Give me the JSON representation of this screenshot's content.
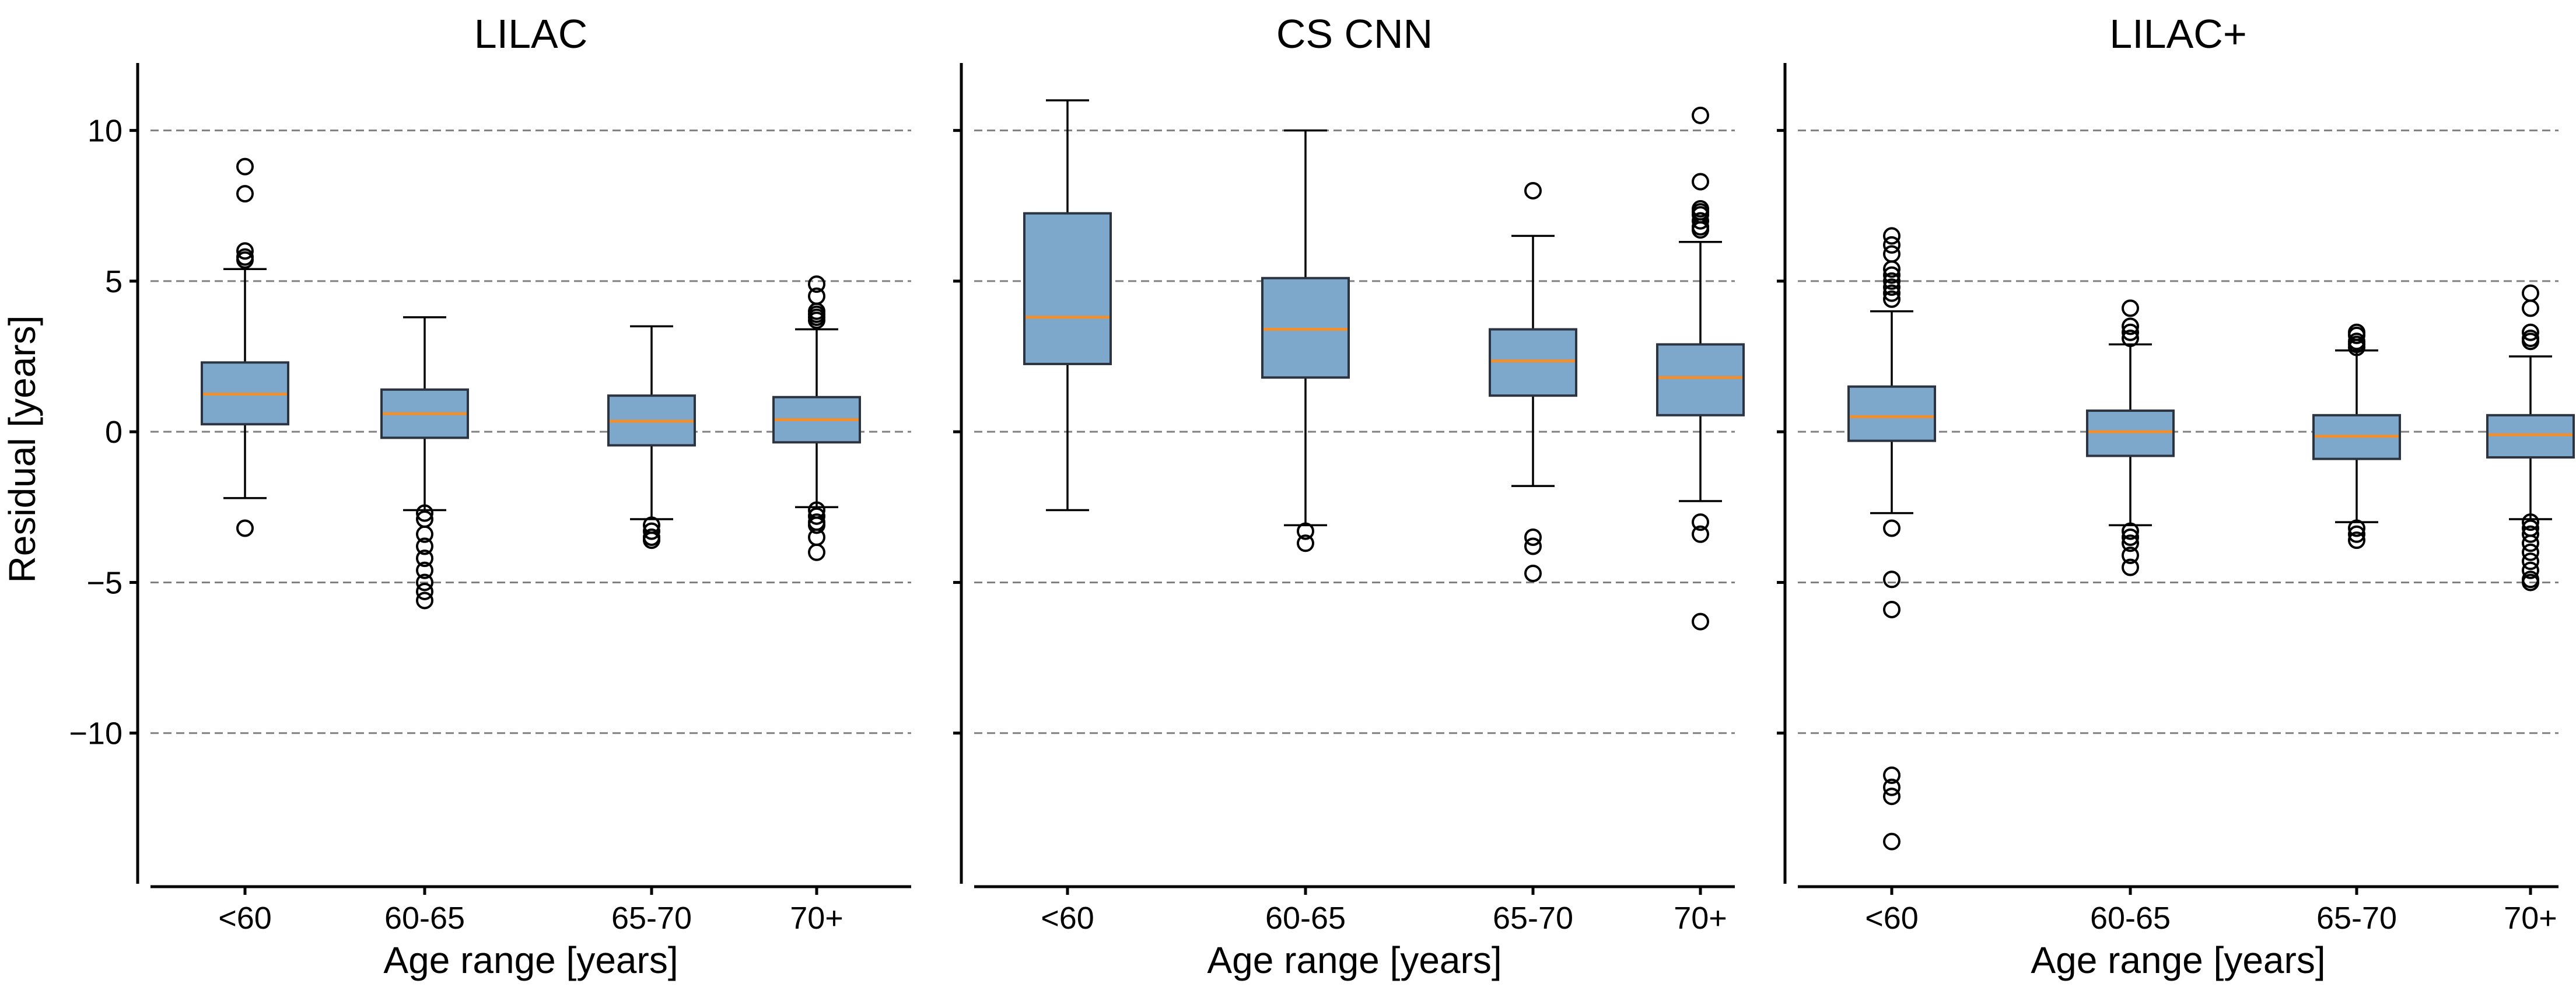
{
  "colors": {
    "box_fill": "#7da7cb",
    "median": "#f28e2b",
    "grid": "#808080"
  },
  "y_axis": {
    "label": "Residual [years]",
    "range": [
      -15,
      12.2
    ],
    "ticks": [
      10,
      5,
      0,
      -5,
      -10
    ],
    "tick_labels": [
      "10",
      "5",
      "0",
      "−5",
      "−10"
    ],
    "gridlines": [
      10,
      5,
      0,
      -5,
      -10
    ]
  },
  "chart_data": [
    {
      "type": "box",
      "title": "LILAC",
      "xlabel": "Age range [years]",
      "ylabel": "Residual [years]",
      "categories": [
        "<60",
        "60-65",
        "65-70",
        "70+"
      ],
      "boxes": [
        {
          "whisker_low": -2.2,
          "q1": 0.25,
          "median": 1.25,
          "q3": 2.3,
          "whisker_high": 5.4,
          "fliers": [
            8.8,
            7.9,
            6.0,
            5.8,
            5.7,
            -3.2
          ]
        },
        {
          "whisker_low": -2.6,
          "q1": -0.2,
          "median": 0.6,
          "q3": 1.4,
          "whisker_high": 3.8,
          "fliers": [
            -2.7,
            -2.9,
            -3.4,
            -3.8,
            -4.2,
            -4.6,
            -5.0,
            -5.3,
            -5.6
          ]
        },
        {
          "whisker_low": -2.9,
          "q1": -0.45,
          "median": 0.35,
          "q3": 1.2,
          "whisker_high": 3.5,
          "fliers": [
            -3.1,
            -3.3,
            -3.5,
            -3.6
          ]
        },
        {
          "whisker_low": -2.5,
          "q1": -0.35,
          "median": 0.4,
          "q3": 1.15,
          "whisker_high": 3.4,
          "fliers": [
            4.9,
            4.5,
            4.0,
            3.9,
            3.8,
            3.7,
            -2.6,
            -2.8,
            -3.0,
            -3.1,
            -3.5,
            -4.0
          ]
        }
      ]
    },
    {
      "type": "box",
      "title": "CS CNN",
      "xlabel": "Age range [years]",
      "categories": [
        "<60",
        "60-65",
        "65-70",
        "70+"
      ],
      "boxes": [
        {
          "whisker_low": -2.6,
          "q1": 2.25,
          "median": 3.8,
          "q3": 7.25,
          "whisker_high": 11.0,
          "fliers": []
        },
        {
          "whisker_low": -3.1,
          "q1": 1.8,
          "median": 3.4,
          "q3": 5.1,
          "whisker_high": 10.0,
          "fliers": [
            -3.3,
            -3.7
          ]
        },
        {
          "whisker_low": -1.8,
          "q1": 1.2,
          "median": 2.35,
          "q3": 3.4,
          "whisker_high": 6.5,
          "fliers": [
            8.0,
            -3.5,
            -3.8,
            -4.7
          ]
        },
        {
          "whisker_low": -2.3,
          "q1": 0.55,
          "median": 1.8,
          "q3": 2.9,
          "whisker_high": 6.3,
          "fliers": [
            10.5,
            8.3,
            7.4,
            7.3,
            7.2,
            7.0,
            6.8,
            6.7,
            -3.0,
            -3.4,
            -6.3
          ]
        }
      ]
    },
    {
      "type": "box",
      "title": "LILAC+",
      "xlabel": "Age range [years]",
      "categories": [
        "<60",
        "60-65",
        "65-70",
        "70+"
      ],
      "boxes": [
        {
          "whisker_low": -2.7,
          "q1": -0.3,
          "median": 0.5,
          "q3": 1.5,
          "whisker_high": 4.0,
          "fliers": [
            6.5,
            6.2,
            5.9,
            5.4,
            5.2,
            5.0,
            4.8,
            4.6,
            4.4,
            -3.2,
            -4.9,
            -5.9,
            -11.4,
            -11.8,
            -12.1,
            -13.6
          ]
        },
        {
          "whisker_low": -3.1,
          "q1": -0.8,
          "median": 0.0,
          "q3": 0.7,
          "whisker_high": 2.9,
          "fliers": [
            4.1,
            3.5,
            3.3,
            3.1,
            -3.3,
            -3.5,
            -3.7,
            -4.1,
            -4.5
          ]
        },
        {
          "whisker_low": -3.0,
          "q1": -0.9,
          "median": -0.15,
          "q3": 0.55,
          "whisker_high": 2.7,
          "fliers": [
            3.3,
            3.2,
            3.0,
            2.9,
            2.8,
            -3.2,
            -3.4,
            -3.6
          ]
        },
        {
          "whisker_low": -2.9,
          "q1": -0.85,
          "median": -0.1,
          "q3": 0.55,
          "whisker_high": 2.5,
          "fliers": [
            4.6,
            4.1,
            3.3,
            3.1,
            3.0,
            -3.0,
            -3.2,
            -3.4,
            -3.7,
            -4.0,
            -4.3,
            -4.6,
            -4.9,
            -5.0
          ]
        }
      ]
    }
  ]
}
